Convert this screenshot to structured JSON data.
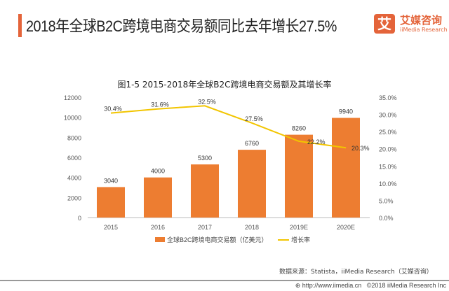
{
  "header": {
    "title": "2018年全球B2C跨境电商交易额同比去年增长27.5%",
    "logo_mark": "艾",
    "logo_cn": "艾媒咨询",
    "logo_en": "iiMedia Research"
  },
  "chart_data": {
    "type": "bar+line",
    "title": "图1-5  2015-2018年全球B2C跨境电商交易额及其增长率",
    "categories": [
      "2015",
      "2016",
      "2017",
      "2018",
      "2019E",
      "2020E"
    ],
    "series": [
      {
        "name": "全球B2C跨境电商交易额（亿美元）",
        "type": "bar",
        "color": "#ed7d31",
        "values": [
          3040,
          4000,
          5300,
          6760,
          8260,
          9940
        ],
        "axis": "left"
      },
      {
        "name": "增长率",
        "type": "line",
        "color": "#f2c500",
        "values": [
          30.4,
          31.6,
          32.5,
          27.5,
          22.2,
          20.3
        ],
        "axis": "right",
        "labels": [
          "30.4%",
          "31.6%",
          "32.5%",
          "27.5%",
          "22.2%",
          "20.3%"
        ]
      }
    ],
    "left_axis": {
      "ylim": [
        0,
        12000
      ],
      "ticks": [
        "0",
        "2000",
        "4000",
        "6000",
        "8000",
        "10000",
        "12000"
      ]
    },
    "right_axis": {
      "ylim": [
        0,
        35
      ],
      "ticks": [
        "0.0%",
        "5.0%",
        "10.0%",
        "15.0%",
        "20.0%",
        "25.0%",
        "30.0%",
        "35.0%"
      ]
    },
    "grid": false,
    "legend": "bottom"
  },
  "footer": {
    "source": "数据来源：Statista，iiMedia Research（艾媒咨询）",
    "url": "⊕ http://www.iimedia.cn",
    "copyright": "©2018  iiMedia Research  Inc"
  }
}
